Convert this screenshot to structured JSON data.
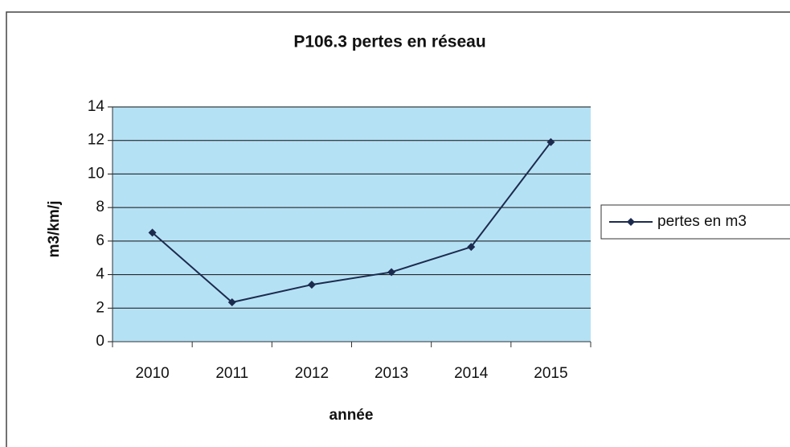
{
  "chart_data": {
    "type": "line",
    "title": "P106.3 pertes en réseau",
    "x_label": "année",
    "y_label": "m3/km/j",
    "categories": [
      "2010",
      "2011",
      "2012",
      "2013",
      "2014",
      "2015"
    ],
    "series": [
      {
        "name": "pertes en m3",
        "color": "#1c2b4d",
        "values": [
          6.5,
          2.35,
          3.4,
          4.15,
          5.65,
          11.9
        ]
      }
    ],
    "ylim": [
      0,
      14
    ],
    "yticks": [
      0,
      2,
      4,
      6,
      8,
      10,
      12,
      14
    ],
    "grid": true,
    "plot_color": "#b5e1f5",
    "legend": "right"
  }
}
